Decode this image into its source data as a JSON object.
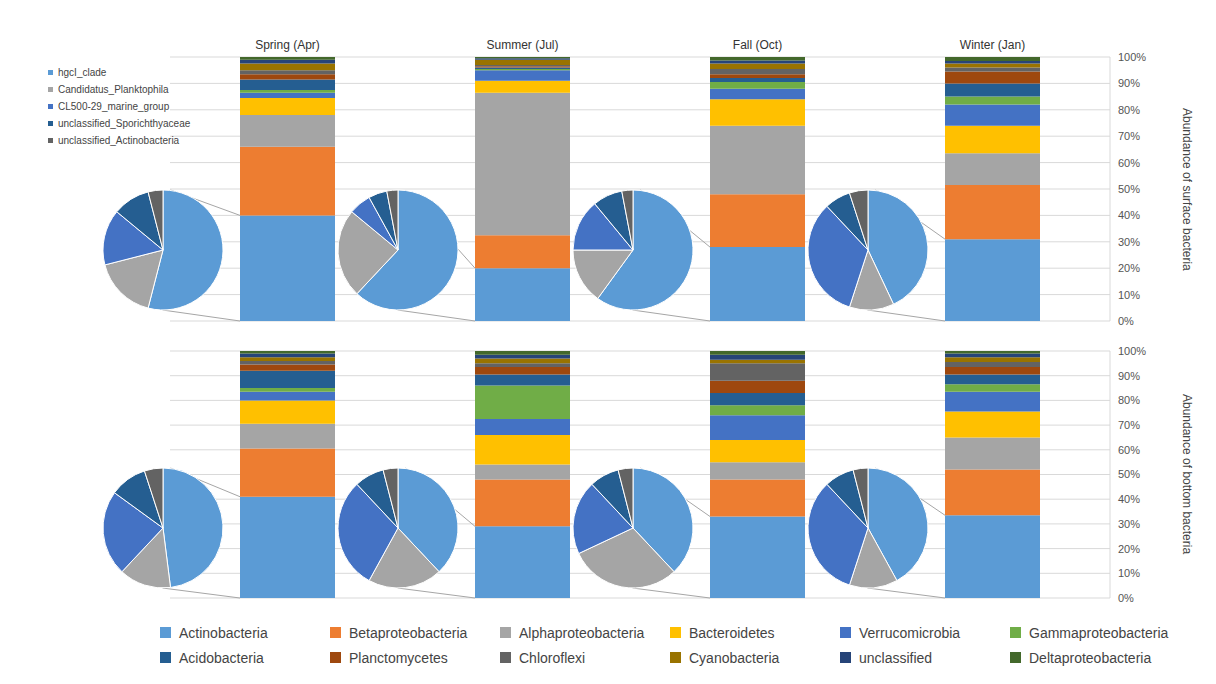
{
  "chart_data": [
    {
      "type": "bar",
      "stacked": true,
      "grid": true,
      "legend": "bottom",
      "categories": [
        "Spring (Apr)",
        "Summer (Jul)",
        "Fall (Oct)",
        "Winter (Jan)"
      ],
      "y_label": "Abundance of surface bacteria",
      "ylim": [
        0,
        100
      ],
      "yticks": [
        {
          "value": 0,
          "label": "0%"
        },
        {
          "value": 10,
          "label": "10%"
        },
        {
          "value": 20,
          "label": "20%"
        },
        {
          "value": 30,
          "label": "30%"
        },
        {
          "value": 40,
          "label": "40%"
        },
        {
          "value": 50,
          "label": "50%"
        },
        {
          "value": 60,
          "label": "60%"
        },
        {
          "value": 70,
          "label": "70%"
        },
        {
          "value": 80,
          "label": "80%"
        },
        {
          "value": 90,
          "label": "90%"
        },
        {
          "value": 100,
          "label": "100%"
        }
      ],
      "series": [
        {
          "name": "Actinobacteria",
          "color": "#5b9bd5",
          "values": [
            40,
            20,
            28,
            31
          ]
        },
        {
          "name": "Betaproteobacteria",
          "color": "#ed7d31",
          "values": [
            26,
            12.5,
            20,
            20.5
          ]
        },
        {
          "name": "Alphaproteobacteria",
          "color": "#a5a5a5",
          "values": [
            12,
            54,
            26,
            12
          ]
        },
        {
          "name": "Bacteroidetes",
          "color": "#ffc000",
          "values": [
            6.5,
            4.5,
            10,
            10.5
          ]
        },
        {
          "name": "Verrucomicrobia",
          "color": "#4472c4",
          "values": [
            2,
            4,
            4,
            8
          ]
        },
        {
          "name": "Gammaproteobacteria",
          "color": "#70ad47",
          "values": [
            1,
            0.5,
            2.5,
            3
          ]
        },
        {
          "name": "Acidobacteria",
          "color": "#255e91",
          "values": [
            4,
            0.5,
            1.5,
            5
          ]
        },
        {
          "name": "Planctomycetes",
          "color": "#9e480e",
          "values": [
            2,
            0.5,
            1.5,
            4.5
          ]
        },
        {
          "name": "Chloroflexi",
          "color": "#636363",
          "values": [
            1.5,
            0.5,
            2,
            1.5
          ]
        },
        {
          "name": "Cyanobacteria",
          "color": "#997300",
          "values": [
            2.5,
            2,
            2,
            1.5
          ]
        },
        {
          "name": "unclassified",
          "color": "#264478",
          "values": [
            1.5,
            0.5,
            1.2,
            1
          ]
        },
        {
          "name": "Deltaproteobacteria",
          "color": "#43682b",
          "values": [
            1,
            0.5,
            1.3,
            1.5
          ]
        }
      ],
      "pie_data": {
        "type": "pie",
        "legend": "top left",
        "labels": [
          "hgcI_clade",
          "Candidatus_Planktophila",
          "CL500-29_marine_group",
          "unclassified_Sporichthyaceae",
          "unclassified_Actinobacteria"
        ],
        "colors": [
          "#5b9bd5",
          "#a5a5a5",
          "#4472c4",
          "#255e91",
          "#636363"
        ],
        "values": [
          [
            54,
            17,
            15,
            10,
            4
          ],
          [
            62,
            24,
            6,
            5,
            3
          ],
          [
            60,
            15,
            14,
            8,
            3
          ],
          [
            43,
            12,
            33,
            7,
            5
          ]
        ]
      }
    },
    {
      "type": "bar",
      "stacked": true,
      "grid": true,
      "categories": [
        null,
        null,
        null,
        null
      ],
      "y_label": "Abundance of bottom bacteria",
      "ylim": [
        0,
        100
      ],
      "yticks": [
        {
          "value": 0,
          "label": "0%"
        },
        {
          "value": 10,
          "label": "10%"
        },
        {
          "value": 20,
          "label": "20%"
        },
        {
          "value": 30,
          "label": "30%"
        },
        {
          "value": 40,
          "label": "40%"
        },
        {
          "value": 50,
          "label": "50%"
        },
        {
          "value": 60,
          "label": "60%"
        },
        {
          "value": 70,
          "label": "70%"
        },
        {
          "value": 80,
          "label": "80%"
        },
        {
          "value": 90,
          "label": "90%"
        },
        {
          "value": 100,
          "label": "100%"
        }
      ],
      "series": [
        {
          "name": "Actinobacteria",
          "color": "#5b9bd5",
          "values": [
            41,
            29,
            33,
            33.5
          ]
        },
        {
          "name": "Betaproteobacteria",
          "color": "#ed7d31",
          "values": [
            19.5,
            19,
            15,
            18.5
          ]
        },
        {
          "name": "Alphaproteobacteria",
          "color": "#a5a5a5",
          "values": [
            10,
            6,
            7,
            13
          ]
        },
        {
          "name": "Bacteroidetes",
          "color": "#ffc000",
          "values": [
            9.5,
            12,
            9,
            10.5
          ]
        },
        {
          "name": "Verrucomicrobia",
          "color": "#4472c4",
          "values": [
            3.5,
            6.5,
            10,
            8
          ]
        },
        {
          "name": "Gammaproteobacteria",
          "color": "#70ad47",
          "values": [
            1.5,
            13.5,
            4,
            3
          ]
        },
        {
          "name": "Acidobacteria",
          "color": "#255e91",
          "values": [
            7,
            4.5,
            5,
            4
          ]
        },
        {
          "name": "Planctomycetes",
          "color": "#9e480e",
          "values": [
            2.5,
            3,
            5,
            3
          ]
        },
        {
          "name": "Chloroflexi",
          "color": "#636363",
          "values": [
            1.5,
            1.5,
            7,
            2
          ]
        },
        {
          "name": "Cyanobacteria",
          "color": "#997300",
          "values": [
            1.5,
            2,
            1.5,
            2
          ]
        },
        {
          "name": "unclassified",
          "color": "#264478",
          "values": [
            1.5,
            1.5,
            2,
            1.5
          ]
        },
        {
          "name": "Deltaproteobacteria",
          "color": "#43682b",
          "values": [
            1,
            1.5,
            1.5,
            1
          ]
        }
      ],
      "pie_data": {
        "type": "pie",
        "labels": [
          "hgcI_clade",
          "Candidatus_Planktophila",
          "CL500-29_marine_group",
          "unclassified_Sporichthyaceae",
          "unclassified_Actinobacteria"
        ],
        "colors": [
          "#5b9bd5",
          "#a5a5a5",
          "#4472c4",
          "#255e91",
          "#636363"
        ],
        "values": [
          [
            48,
            14,
            23,
            10,
            5
          ],
          [
            38,
            20,
            30,
            8,
            4
          ],
          [
            38,
            30,
            20,
            8,
            4
          ],
          [
            42,
            13,
            33,
            8,
            4
          ]
        ]
      }
    }
  ]
}
